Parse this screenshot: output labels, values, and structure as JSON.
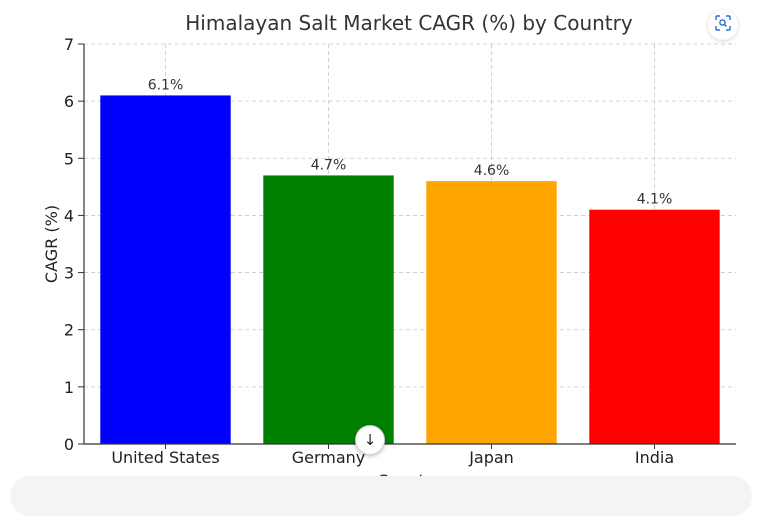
{
  "chart_data": {
    "type": "bar",
    "title": "Himalayan Salt Market CAGR (%) by Country",
    "xlabel": "Country",
    "ylabel": "CAGR (%)",
    "categories": [
      "United States",
      "Germany",
      "Japan",
      "India"
    ],
    "values": [
      6.1,
      4.7,
      4.6,
      4.1
    ],
    "data_labels": [
      "6.1%",
      "4.7%",
      "4.6%",
      "4.1%"
    ],
    "colors": [
      "#0000ff",
      "#008000",
      "#ffa500",
      "#ff0000"
    ],
    "ylim": [
      0,
      7
    ],
    "yticks": [
      0,
      1,
      2,
      3,
      4,
      5,
      6,
      7
    ],
    "grid": true,
    "grid_style": "dashed",
    "legend": "none"
  },
  "ui": {
    "lens_icon": "image-search-icon",
    "scroll_icon": "arrow-down-icon",
    "scroll_glyph": "↓"
  }
}
